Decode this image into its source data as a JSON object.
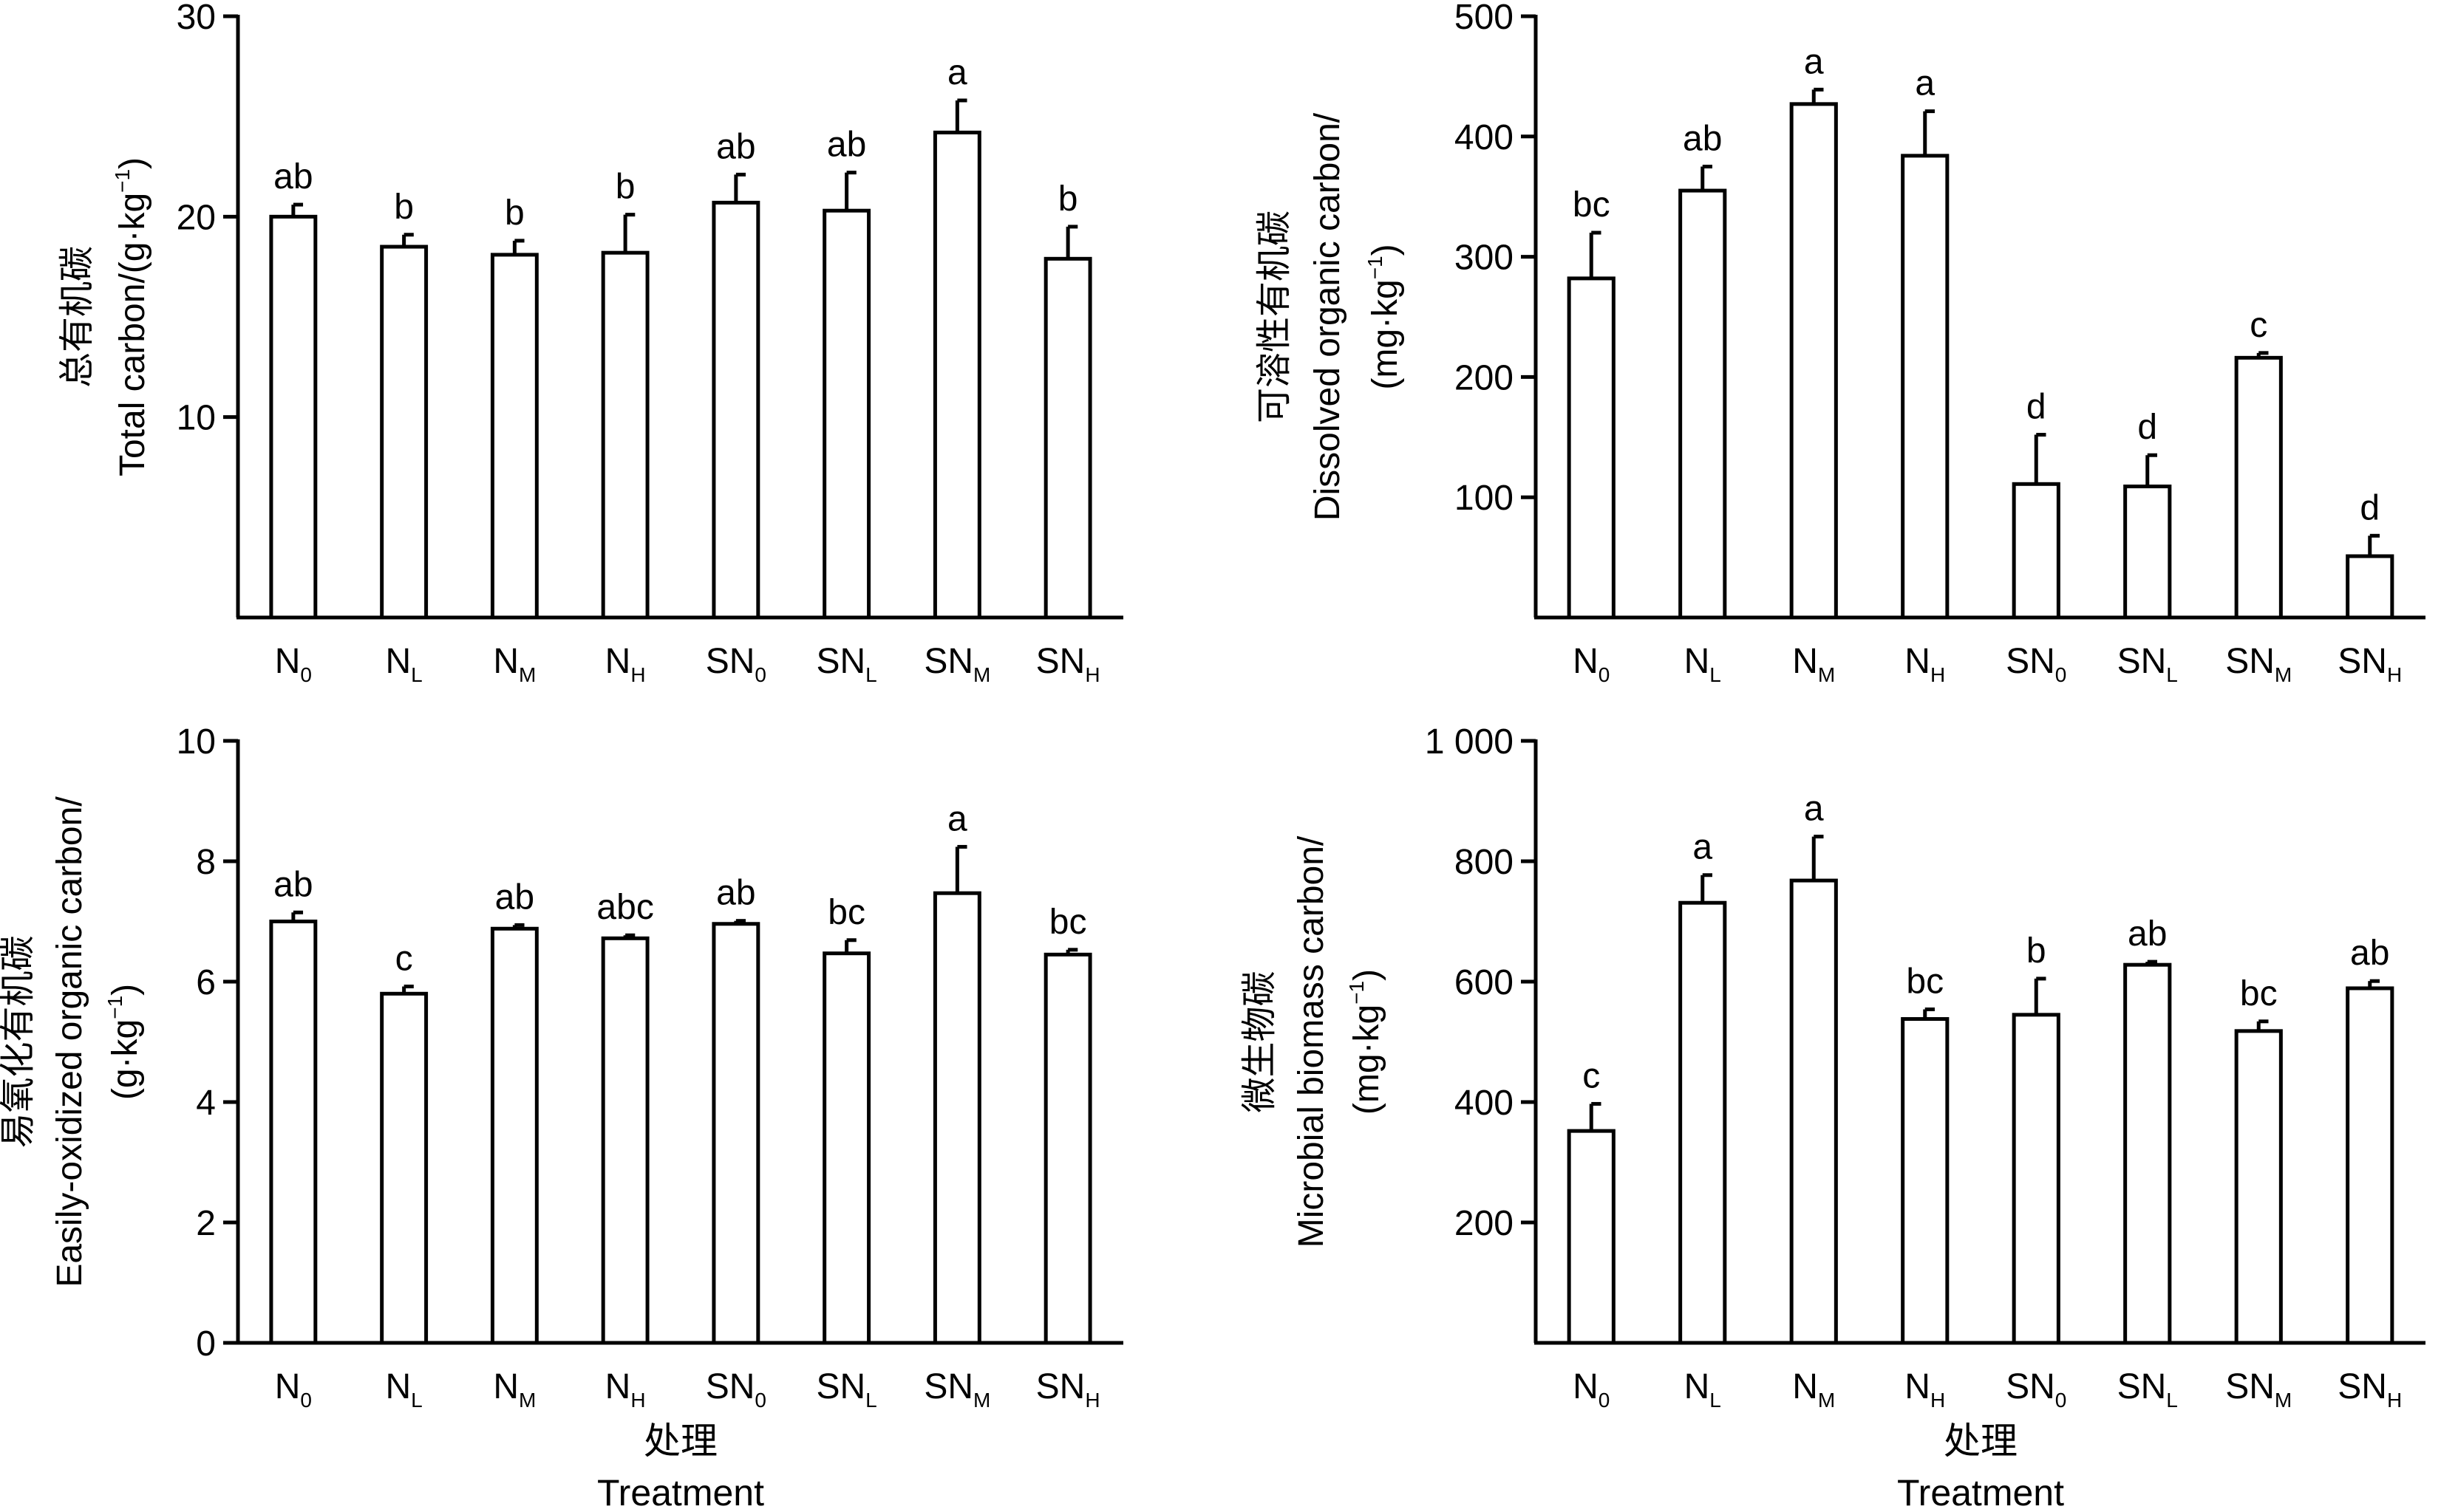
{
  "chart_data": [
    {
      "type": "bar",
      "ylabel_cn": "总有机碳",
      "ylabel_en": "Total carbon/(g·kg",
      "ylabel_sup": "−1",
      "ylabel_close": ")",
      "ylabel_line3": "",
      "xlabel_cn": "",
      "xlabel_en": "",
      "categories": [
        {
          "base": "N",
          "sub": "0"
        },
        {
          "base": "N",
          "sub": "L"
        },
        {
          "base": "N",
          "sub": "M"
        },
        {
          "base": "N",
          "sub": "H"
        },
        {
          "base": "SN",
          "sub": "0"
        },
        {
          "base": "SN",
          "sub": "L"
        },
        {
          "base": "SN",
          "sub": "M"
        },
        {
          "base": "SN",
          "sub": "H"
        }
      ],
      "values": [
        20.0,
        18.5,
        18.1,
        18.2,
        20.7,
        20.3,
        24.2,
        17.9
      ],
      "errors": [
        0.6,
        0.6,
        0.7,
        1.9,
        1.4,
        1.9,
        1.6,
        1.6
      ],
      "letters": [
        "ab",
        "b",
        "b",
        "b",
        "ab",
        "ab",
        "a",
        "b"
      ],
      "ylim": [
        0,
        30
      ],
      "ticks": [
        10,
        20,
        30
      ],
      "tick_labels": [
        "10",
        "20",
        "30"
      ]
    },
    {
      "type": "bar",
      "ylabel_cn": "可溶性有机碳",
      "ylabel_en": "Dissolved organic carbon/",
      "ylabel_sup": "",
      "ylabel_close": "",
      "ylabel_line3": "(mg·kg",
      "ylabel_line3_sup": "−1",
      "ylabel_line3_close": ")",
      "xlabel_cn": "",
      "xlabel_en": "",
      "categories": [
        {
          "base": "N",
          "sub": "0"
        },
        {
          "base": "N",
          "sub": "L"
        },
        {
          "base": "N",
          "sub": "M"
        },
        {
          "base": "N",
          "sub": "H"
        },
        {
          "base": "SN",
          "sub": "0"
        },
        {
          "base": "SN",
          "sub": "L"
        },
        {
          "base": "SN",
          "sub": "M"
        },
        {
          "base": "SN",
          "sub": "H"
        }
      ],
      "values": [
        282,
        355,
        427,
        384,
        111,
        109,
        216,
        51
      ],
      "errors": [
        38,
        20,
        12,
        37,
        41,
        26,
        4,
        17
      ],
      "letters": [
        "bc",
        "ab",
        "a",
        "a",
        "d",
        "d",
        "c",
        "d"
      ],
      "ylim": [
        0,
        500
      ],
      "ticks": [
        100,
        200,
        300,
        400,
        500
      ],
      "tick_labels": [
        "100",
        "200",
        "300",
        "400",
        "500"
      ]
    },
    {
      "type": "bar",
      "ylabel_cn": "易氧化有机碳",
      "ylabel_en": "Easily-oxidized organic carbon/",
      "ylabel_sup": "",
      "ylabel_close": "",
      "ylabel_line3": "(g·kg",
      "ylabel_line3_sup": "−1",
      "ylabel_line3_close": ")",
      "xlabel_cn": "处理",
      "xlabel_en": "Treatment",
      "categories": [
        {
          "base": "N",
          "sub": "0"
        },
        {
          "base": "N",
          "sub": "L"
        },
        {
          "base": "N",
          "sub": "M"
        },
        {
          "base": "N",
          "sub": "H"
        },
        {
          "base": "SN",
          "sub": "0"
        },
        {
          "base": "SN",
          "sub": "L"
        },
        {
          "base": "SN",
          "sub": "M"
        },
        {
          "base": "SN",
          "sub": "H"
        }
      ],
      "values": [
        7.0,
        5.8,
        6.88,
        6.72,
        6.96,
        6.47,
        7.47,
        6.45
      ],
      "errors": [
        0.15,
        0.12,
        0.06,
        0.05,
        0.05,
        0.22,
        0.77,
        0.08
      ],
      "letters": [
        "ab",
        "c",
        "ab",
        "abc",
        "ab",
        "bc",
        "a",
        "bc"
      ],
      "ylim": [
        0,
        10
      ],
      "ticks": [
        0,
        2,
        4,
        6,
        8,
        10
      ],
      "tick_labels": [
        "0",
        "2",
        "4",
        "6",
        "8",
        "10"
      ]
    },
    {
      "type": "bar",
      "ylabel_cn": "微生物碳",
      "ylabel_en": "Microbial biomass carbon/",
      "ylabel_sup": "",
      "ylabel_close": "",
      "ylabel_line3": "(mg·kg",
      "ylabel_line3_sup": "−1",
      "ylabel_line3_close": ")",
      "xlabel_cn": "处理",
      "xlabel_en": "Treatment",
      "categories": [
        {
          "base": "N",
          "sub": "0"
        },
        {
          "base": "N",
          "sub": "L"
        },
        {
          "base": "N",
          "sub": "M"
        },
        {
          "base": "N",
          "sub": "H"
        },
        {
          "base": "SN",
          "sub": "0"
        },
        {
          "base": "SN",
          "sub": "L"
        },
        {
          "base": "SN",
          "sub": "M"
        },
        {
          "base": "SN",
          "sub": "H"
        }
      ],
      "values": [
        352,
        731,
        768,
        538,
        545,
        628,
        518,
        589
      ],
      "errors": [
        45,
        46,
        73,
        16,
        60,
        5,
        16,
        12
      ],
      "letters": [
        "c",
        "a",
        "a",
        "bc",
        "b",
        "ab",
        "bc",
        "ab"
      ],
      "ylim": [
        0,
        1000
      ],
      "ticks": [
        200,
        400,
        600,
        800,
        1000
      ],
      "tick_labels": [
        "200",
        "400",
        "600",
        "800",
        "1 000"
      ]
    }
  ]
}
